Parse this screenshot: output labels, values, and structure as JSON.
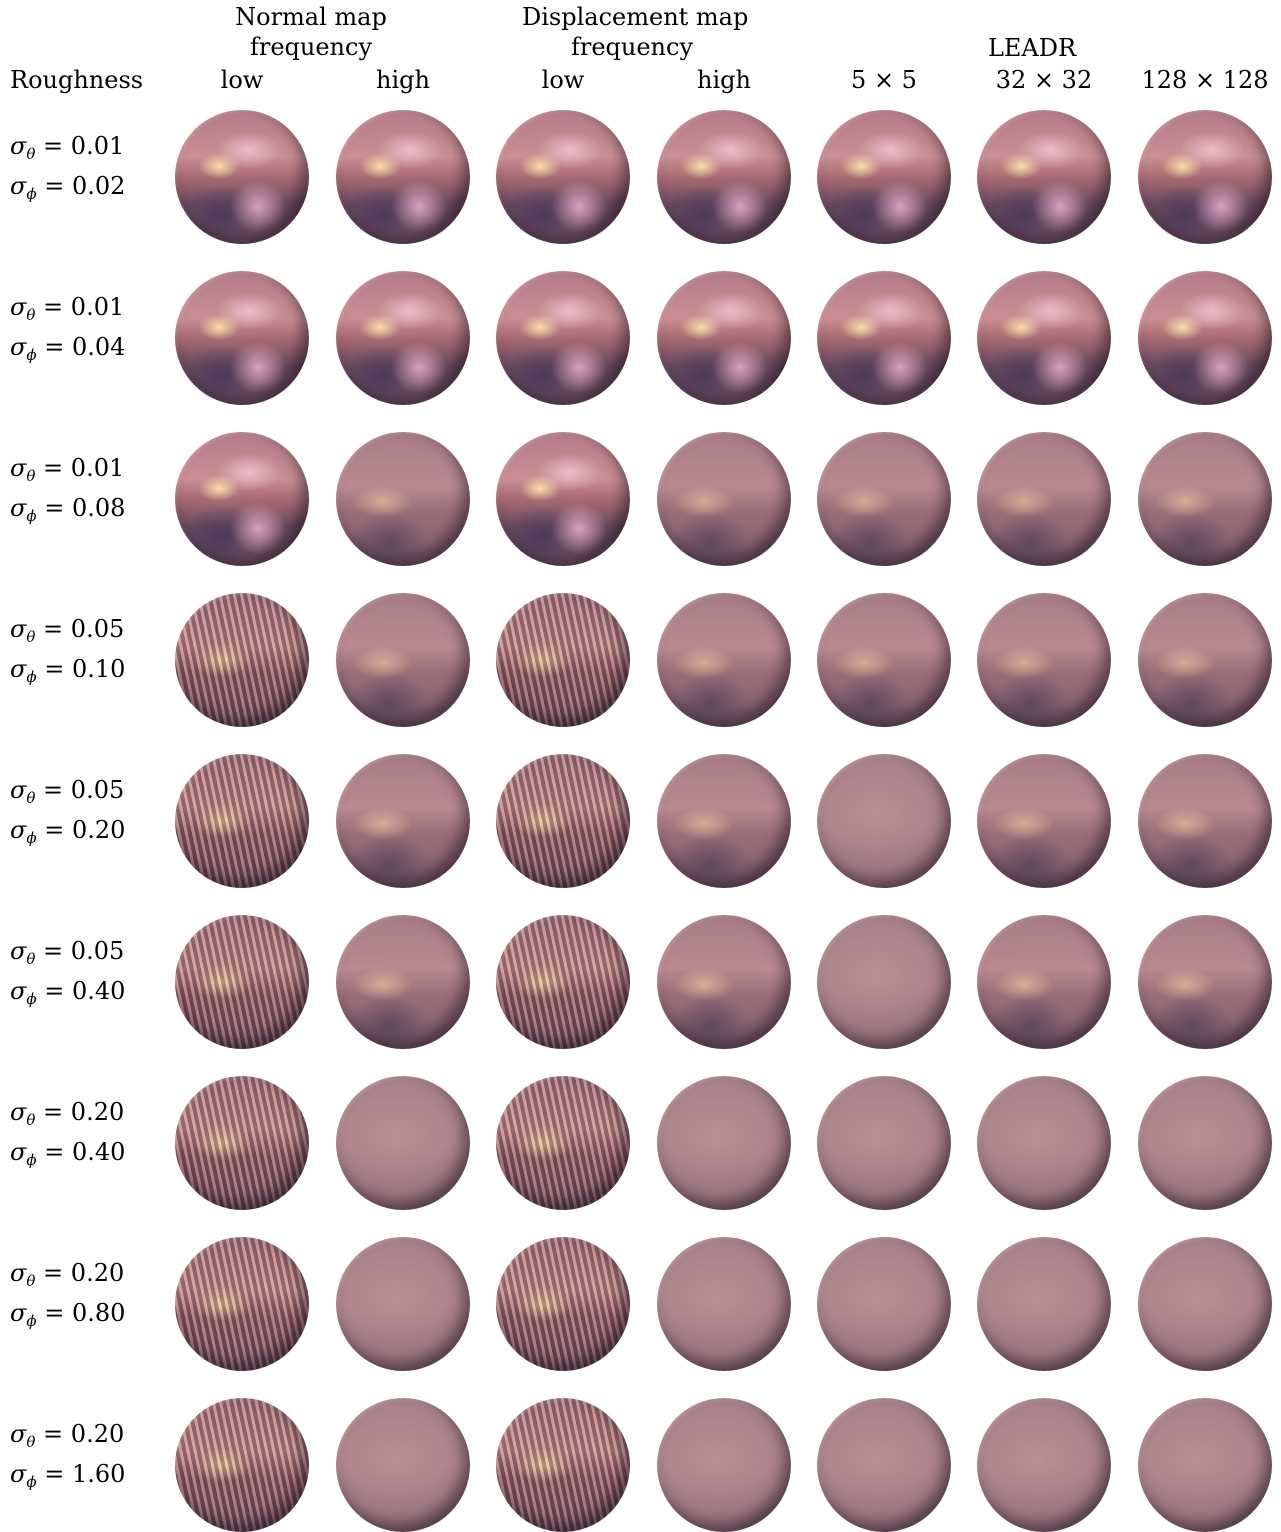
{
  "header": {
    "roughness": "Roughness",
    "normal_group_line1": "Normal map",
    "normal_group_line2": "frequency",
    "disp_group_line1": "Displacement map",
    "disp_group_line2": "frequency",
    "leadr_group": "LEADR",
    "columns": [
      "low",
      "high",
      "low",
      "high",
      "5 × 5",
      "32 × 32",
      "128 × 128"
    ]
  },
  "rows": [
    {
      "sigma_theta": "0.01",
      "sigma_phi": "0.02"
    },
    {
      "sigma_theta": "0.01",
      "sigma_phi": "0.04"
    },
    {
      "sigma_theta": "0.01",
      "sigma_phi": "0.08"
    },
    {
      "sigma_theta": "0.05",
      "sigma_phi": "0.10"
    },
    {
      "sigma_theta": "0.05",
      "sigma_phi": "0.20"
    },
    {
      "sigma_theta": "0.05",
      "sigma_phi": "0.40"
    },
    {
      "sigma_theta": "0.20",
      "sigma_phi": "0.40"
    },
    {
      "sigma_theta": "0.20",
      "sigma_phi": "0.80"
    },
    {
      "sigma_theta": "0.20",
      "sigma_phi": "1.60"
    }
  ]
}
